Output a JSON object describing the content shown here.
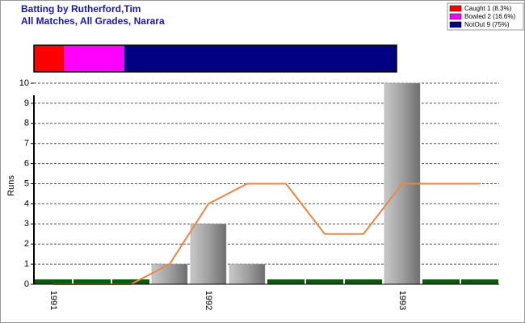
{
  "chart_data": [
    {
      "type": "bar-line",
      "title": "Batting by Rutherford,Tim",
      "subtitle": "All Matches, All Grades, Narara",
      "y_label": "Runs",
      "categories": [
        "1991",
        null,
        null,
        null,
        "1992",
        null,
        null,
        null,
        null,
        "1993",
        null,
        null
      ],
      "series": [
        {
          "type": "bar",
          "color": "#999999",
          "zero_color": "#0d5a0d",
          "values": [
            0,
            0,
            0,
            1,
            3,
            1,
            0,
            0,
            0,
            10,
            0,
            0
          ]
        },
        {
          "type": "line",
          "color": "#e8874a",
          "values": [
            0,
            0,
            0,
            1,
            4,
            5,
            5,
            2.5,
            2.5,
            5,
            5,
            5
          ]
        }
      ],
      "ylim": [
        0,
        10
      ],
      "yticks": [
        0,
        1,
        2,
        3,
        4,
        5,
        6,
        7,
        8,
        9,
        10
      ],
      "grid": true
    },
    {
      "type": "stacked-bar",
      "series": [
        {
          "name": "Caught 1 (8.3%)",
          "color": "#ff0000",
          "values": [
            8.3
          ]
        },
        {
          "name": "Bowled 2 (16.6%)",
          "color": "#ff00ff",
          "values": [
            16.6
          ]
        },
        {
          "name": "NotOut 9 (75%)",
          "color": "#000080",
          "values": [
            75
          ]
        }
      ],
      "legend": "top-right"
    }
  ]
}
